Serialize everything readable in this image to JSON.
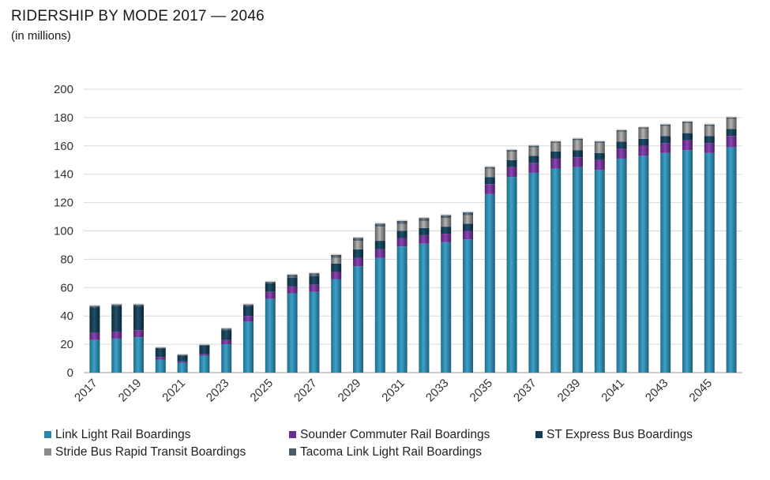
{
  "chart_data": {
    "type": "bar",
    "stacked": true,
    "title": "RIDERSHIP BY MODE 2017 — 2046",
    "subtitle": "(in millions)",
    "xlabel": "",
    "ylabel": "",
    "ylim": [
      0,
      200
    ],
    "yticks": [
      0,
      20,
      40,
      60,
      80,
      100,
      120,
      140,
      160,
      180,
      200
    ],
    "grid": true,
    "legend_position": "bottom",
    "categories": [
      "2017",
      "2018",
      "2019",
      "2020",
      "2021",
      "2022",
      "2023",
      "2024",
      "2025",
      "2026",
      "2027",
      "2028",
      "2029",
      "2030",
      "2031",
      "2032",
      "2033",
      "2034",
      "2035",
      "2036",
      "2037",
      "2038",
      "2039",
      "2040",
      "2041",
      "2042",
      "2043",
      "2044",
      "2045",
      "2046"
    ],
    "x_tick_labels": [
      "2017",
      "2019",
      "2021",
      "2023",
      "2025",
      "2027",
      "2029",
      "2031",
      "2033",
      "2035",
      "2037",
      "2039",
      "2041",
      "2043",
      "2045"
    ],
    "series": [
      {
        "name": "Link Light Rail Boardings",
        "color": "#2b86a8",
        "values": [
          23,
          24,
          25,
          9,
          7,
          12,
          20,
          36,
          52,
          56,
          57,
          66,
          75,
          81,
          89,
          91,
          92,
          94,
          126,
          138,
          141,
          144,
          145,
          143,
          151,
          153,
          155,
          157,
          155,
          159
        ]
      },
      {
        "name": "Sounder Commuter Rail Boardings",
        "color": "#6a2d8f",
        "values": [
          5,
          5,
          5,
          2,
          1,
          1,
          3,
          4,
          5,
          5,
          5,
          5,
          6,
          6,
          6,
          6,
          6,
          6,
          7,
          7,
          7,
          7,
          7,
          7,
          7,
          7,
          7,
          7,
          7,
          8
        ]
      },
      {
        "name": "ST Express Bus Boardings",
        "color": "#143c52",
        "values": [
          18,
          18,
          17,
          6,
          4,
          6,
          7,
          7,
          6,
          6,
          6,
          6,
          6,
          6,
          5,
          5,
          5,
          5,
          5,
          5,
          5,
          5,
          5,
          5,
          5,
          5,
          5,
          5,
          5,
          5
        ]
      },
      {
        "name": "Stride Bus Rapid Transit Boardings",
        "color": "#8a8a8a",
        "values": [
          0,
          0,
          0,
          0,
          0,
          0,
          0,
          0,
          0,
          0,
          0,
          4,
          6,
          10,
          5,
          5,
          6,
          6,
          6,
          6,
          6,
          6,
          7,
          7,
          7,
          7,
          7,
          7,
          7,
          7
        ]
      },
      {
        "name": "Tacoma Link Light Rail Boardings",
        "color": "#4a5a66",
        "values": [
          1,
          1,
          1,
          0.5,
          0.5,
          0.5,
          1,
          1,
          1,
          2,
          2,
          2,
          2,
          2,
          2,
          2,
          2,
          2,
          1,
          1,
          1,
          1,
          1,
          1,
          1,
          1,
          1,
          1,
          1,
          1
        ]
      }
    ]
  }
}
